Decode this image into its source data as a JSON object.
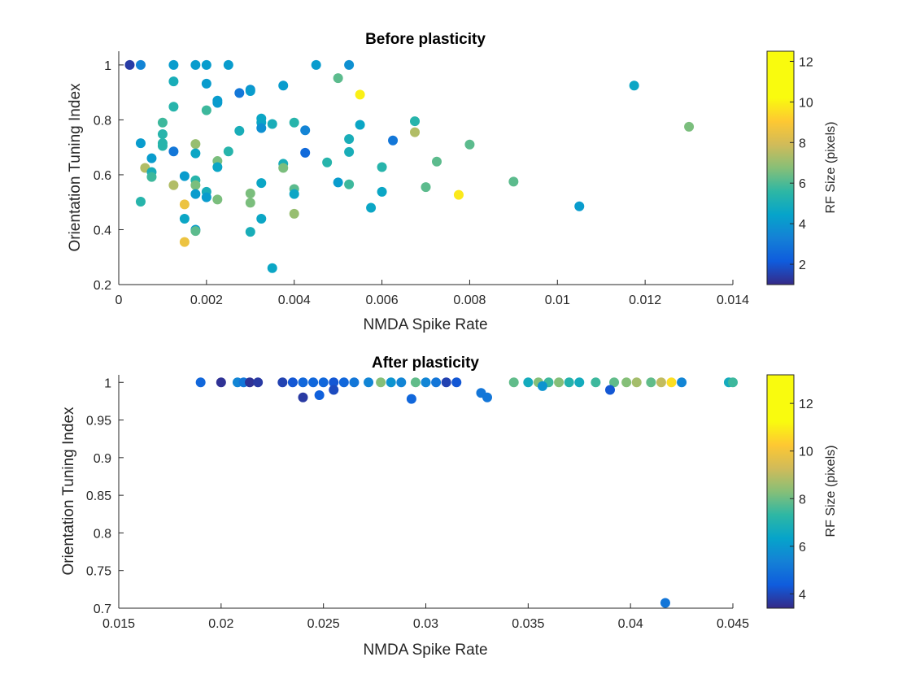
{
  "chart_data": [
    {
      "type": "scatter",
      "title": "Before plasticity",
      "xlabel": "NMDA Spike Rate",
      "ylabel": "Orientation Tuning Index",
      "xlim": [
        0,
        0.014
      ],
      "ylim": [
        0.2,
        1.05
      ],
      "xticks": [
        0,
        0.002,
        0.004,
        0.006,
        0.008,
        0.01,
        0.012,
        0.014
      ],
      "xtick_labels": [
        "0",
        "0.002",
        "0.004",
        "0.006",
        "0.008",
        "0.01",
        "0.012",
        "0.014"
      ],
      "yticks": [
        0.2,
        0.4,
        0.6,
        0.8,
        1
      ],
      "ytick_labels": [
        "0.2",
        "0.4",
        "0.6",
        "0.8",
        "1"
      ],
      "colorbar": {
        "label": "RF Size (pixels)",
        "range": [
          1,
          12.5
        ],
        "ticks": [
          2,
          4,
          6,
          8,
          10,
          12
        ],
        "tick_labels": [
          "2",
          "4",
          "6",
          "8",
          "10",
          "12"
        ],
        "colormap": "parula"
      },
      "points": [
        {
          "x": 0.00025,
          "y": 1.0,
          "c": 1.5
        },
        {
          "x": 0.0005,
          "y": 1.0,
          "c": 4.0
        },
        {
          "x": 0.00125,
          "y": 1.0,
          "c": 5.0
        },
        {
          "x": 0.00175,
          "y": 1.0,
          "c": 5.0
        },
        {
          "x": 0.002,
          "y": 1.0,
          "c": 5.0
        },
        {
          "x": 0.0025,
          "y": 1.0,
          "c": 5.0
        },
        {
          "x": 0.0045,
          "y": 1.0,
          "c": 5.0
        },
        {
          "x": 0.00525,
          "y": 1.0,
          "c": 4.5
        },
        {
          "x": 0.01175,
          "y": 0.925,
          "c": 5.5
        },
        {
          "x": 0.0055,
          "y": 0.892,
          "c": 12.2
        },
        {
          "x": 0.005,
          "y": 0.952,
          "c": 7.5
        },
        {
          "x": 0.00125,
          "y": 0.94,
          "c": 6.0
        },
        {
          "x": 0.002,
          "y": 0.932,
          "c": 5.0
        },
        {
          "x": 0.00375,
          "y": 0.925,
          "c": 5.0
        },
        {
          "x": 0.003,
          "y": 0.91,
          "c": 4.5
        },
        {
          "x": 0.003,
          "y": 0.905,
          "c": 5.0
        },
        {
          "x": 0.00275,
          "y": 0.898,
          "c": 3.5
        },
        {
          "x": 0.00225,
          "y": 0.87,
          "c": 5.0
        },
        {
          "x": 0.00225,
          "y": 0.862,
          "c": 5.0
        },
        {
          "x": 0.00125,
          "y": 0.848,
          "c": 6.5
        },
        {
          "x": 0.002,
          "y": 0.835,
          "c": 7.0
        },
        {
          "x": 0.00325,
          "y": 0.805,
          "c": 5.5
        },
        {
          "x": 0.00325,
          "y": 0.79,
          "c": 5.5
        },
        {
          "x": 0.0035,
          "y": 0.785,
          "c": 6.0
        },
        {
          "x": 0.004,
          "y": 0.79,
          "c": 6.5
        },
        {
          "x": 0.00675,
          "y": 0.795,
          "c": 6.5
        },
        {
          "x": 0.001,
          "y": 0.79,
          "c": 7.0
        },
        {
          "x": 0.0055,
          "y": 0.782,
          "c": 5.5
        },
        {
          "x": 0.00325,
          "y": 0.77,
          "c": 4.5
        },
        {
          "x": 0.00425,
          "y": 0.762,
          "c": 4.0
        },
        {
          "x": 0.00275,
          "y": 0.76,
          "c": 6.0
        },
        {
          "x": 0.00675,
          "y": 0.755,
          "c": 9.0
        },
        {
          "x": 0.013,
          "y": 0.775,
          "c": 8.0
        },
        {
          "x": 0.001,
          "y": 0.748,
          "c": 6.5
        },
        {
          "x": 0.00525,
          "y": 0.73,
          "c": 6.0
        },
        {
          "x": 0.00625,
          "y": 0.725,
          "c": 3.5
        },
        {
          "x": 0.001,
          "y": 0.715,
          "c": 6.5
        },
        {
          "x": 0.0005,
          "y": 0.715,
          "c": 5.0
        },
        {
          "x": 0.00175,
          "y": 0.712,
          "c": 8.5
        },
        {
          "x": 0.008,
          "y": 0.71,
          "c": 7.5
        },
        {
          "x": 0.001,
          "y": 0.705,
          "c": 6.5
        },
        {
          "x": 0.00125,
          "y": 0.685,
          "c": 3.5
        },
        {
          "x": 0.00175,
          "y": 0.678,
          "c": 5.5
        },
        {
          "x": 0.0025,
          "y": 0.685,
          "c": 6.5
        },
        {
          "x": 0.00425,
          "y": 0.68,
          "c": 3.0
        },
        {
          "x": 0.00525,
          "y": 0.683,
          "c": 6.0
        },
        {
          "x": 0.00075,
          "y": 0.66,
          "c": 5.0
        },
        {
          "x": 0.00225,
          "y": 0.65,
          "c": 8.0
        },
        {
          "x": 0.00475,
          "y": 0.645,
          "c": 6.5
        },
        {
          "x": 0.00375,
          "y": 0.64,
          "c": 6.0
        },
        {
          "x": 0.00725,
          "y": 0.648,
          "c": 7.5
        },
        {
          "x": 0.0006,
          "y": 0.625,
          "c": 9.0
        },
        {
          "x": 0.00375,
          "y": 0.625,
          "c": 8.0
        },
        {
          "x": 0.006,
          "y": 0.628,
          "c": 6.5
        },
        {
          "x": 0.00225,
          "y": 0.628,
          "c": 5.5
        },
        {
          "x": 0.00075,
          "y": 0.61,
          "c": 6.0
        },
        {
          "x": 0.00075,
          "y": 0.592,
          "c": 7.0
        },
        {
          "x": 0.0015,
          "y": 0.595,
          "c": 5.0
        },
        {
          "x": 0.00175,
          "y": 0.58,
          "c": 6.5
        },
        {
          "x": 0.009,
          "y": 0.575,
          "c": 7.5
        },
        {
          "x": 0.005,
          "y": 0.572,
          "c": 5.0
        },
        {
          "x": 0.00325,
          "y": 0.57,
          "c": 5.5
        },
        {
          "x": 0.00525,
          "y": 0.565,
          "c": 7.0
        },
        {
          "x": 0.00125,
          "y": 0.562,
          "c": 9.0
        },
        {
          "x": 0.00175,
          "y": 0.562,
          "c": 8.0
        },
        {
          "x": 0.007,
          "y": 0.555,
          "c": 7.5
        },
        {
          "x": 0.004,
          "y": 0.548,
          "c": 7.5
        },
        {
          "x": 0.002,
          "y": 0.538,
          "c": 6.0
        },
        {
          "x": 0.006,
          "y": 0.538,
          "c": 5.5
        },
        {
          "x": 0.003,
          "y": 0.532,
          "c": 8.0
        },
        {
          "x": 0.00175,
          "y": 0.53,
          "c": 5.0
        },
        {
          "x": 0.004,
          "y": 0.53,
          "c": 5.5
        },
        {
          "x": 0.00775,
          "y": 0.527,
          "c": 12.0
        },
        {
          "x": 0.002,
          "y": 0.518,
          "c": 5.0
        },
        {
          "x": 0.00225,
          "y": 0.51,
          "c": 8.0
        },
        {
          "x": 0.0005,
          "y": 0.502,
          "c": 6.5
        },
        {
          "x": 0.003,
          "y": 0.498,
          "c": 8.0
        },
        {
          "x": 0.0015,
          "y": 0.492,
          "c": 10.5
        },
        {
          "x": 0.0105,
          "y": 0.485,
          "c": 5.0
        },
        {
          "x": 0.00575,
          "y": 0.48,
          "c": 5.5
        },
        {
          "x": 0.004,
          "y": 0.458,
          "c": 8.5
        },
        {
          "x": 0.0015,
          "y": 0.44,
          "c": 5.5
        },
        {
          "x": 0.00325,
          "y": 0.44,
          "c": 5.5
        },
        {
          "x": 0.00175,
          "y": 0.4,
          "c": 5.0
        },
        {
          "x": 0.00175,
          "y": 0.395,
          "c": 7.5
        },
        {
          "x": 0.003,
          "y": 0.392,
          "c": 6.0
        },
        {
          "x": 0.0015,
          "y": 0.355,
          "c": 10.5
        },
        {
          "x": 0.0035,
          "y": 0.26,
          "c": 5.5
        }
      ]
    },
    {
      "type": "scatter",
      "title": "After plasticity",
      "xlabel": "NMDA Spike Rate",
      "ylabel": "Orientation Tuning Index",
      "xlim": [
        0.015,
        0.045
      ],
      "ylim": [
        0.7,
        1.01
      ],
      "xticks": [
        0.015,
        0.02,
        0.025,
        0.03,
        0.035,
        0.04,
        0.045
      ],
      "xtick_labels": [
        "0.015",
        "0.02",
        "0.025",
        "0.03",
        "0.035",
        "0.04",
        "0.045"
      ],
      "yticks": [
        0.7,
        0.75,
        0.8,
        0.85,
        0.9,
        0.95,
        1
      ],
      "ytick_labels": [
        "0.7",
        "0.75",
        "0.8",
        "0.85",
        "0.9",
        "0.95",
        "1"
      ],
      "colorbar": {
        "label": "RF Size (pixels)",
        "range": [
          3.4,
          13.2
        ],
        "ticks": [
          4,
          6,
          8,
          10,
          12
        ],
        "tick_labels": [
          "4",
          "6",
          "8",
          "10",
          "12"
        ],
        "colormap": "parula"
      },
      "points": [
        {
          "x": 0.019,
          "y": 1.0,
          "c": 5.0
        },
        {
          "x": 0.02,
          "y": 1.0,
          "c": 3.6
        },
        {
          "x": 0.0208,
          "y": 1.0,
          "c": 6.0
        },
        {
          "x": 0.0211,
          "y": 1.0,
          "c": 5.5
        },
        {
          "x": 0.0214,
          "y": 1.0,
          "c": 3.6
        },
        {
          "x": 0.0218,
          "y": 1.0,
          "c": 3.8
        },
        {
          "x": 0.023,
          "y": 1.0,
          "c": 4.0
        },
        {
          "x": 0.0235,
          "y": 1.0,
          "c": 4.5
        },
        {
          "x": 0.024,
          "y": 1.0,
          "c": 5.0
        },
        {
          "x": 0.0245,
          "y": 1.0,
          "c": 5.0
        },
        {
          "x": 0.025,
          "y": 1.0,
          "c": 5.0
        },
        {
          "x": 0.0255,
          "y": 1.0,
          "c": 4.5
        },
        {
          "x": 0.026,
          "y": 1.0,
          "c": 5.0
        },
        {
          "x": 0.0265,
          "y": 1.0,
          "c": 5.5
        },
        {
          "x": 0.0272,
          "y": 1.0,
          "c": 6.0
        },
        {
          "x": 0.0278,
          "y": 1.0,
          "c": 9.5
        },
        {
          "x": 0.0283,
          "y": 1.0,
          "c": 6.5
        },
        {
          "x": 0.0288,
          "y": 1.0,
          "c": 6.0
        },
        {
          "x": 0.0295,
          "y": 1.0,
          "c": 9.0
        },
        {
          "x": 0.03,
          "y": 1.0,
          "c": 6.0
        },
        {
          "x": 0.0305,
          "y": 1.0,
          "c": 5.5
        },
        {
          "x": 0.031,
          "y": 1.0,
          "c": 4.0
        },
        {
          "x": 0.0315,
          "y": 1.0,
          "c": 4.5
        },
        {
          "x": 0.0343,
          "y": 1.0,
          "c": 9.0
        },
        {
          "x": 0.035,
          "y": 1.0,
          "c": 7.5
        },
        {
          "x": 0.0355,
          "y": 1.0,
          "c": 9.5
        },
        {
          "x": 0.036,
          "y": 1.0,
          "c": 8.5
        },
        {
          "x": 0.0365,
          "y": 1.0,
          "c": 9.5
        },
        {
          "x": 0.037,
          "y": 1.0,
          "c": 8.0
        },
        {
          "x": 0.0375,
          "y": 1.0,
          "c": 7.5
        },
        {
          "x": 0.0383,
          "y": 1.0,
          "c": 8.5
        },
        {
          "x": 0.0392,
          "y": 1.0,
          "c": 9.0
        },
        {
          "x": 0.0398,
          "y": 1.0,
          "c": 9.5
        },
        {
          "x": 0.0403,
          "y": 1.0,
          "c": 10.0
        },
        {
          "x": 0.041,
          "y": 1.0,
          "c": 9.0
        },
        {
          "x": 0.0415,
          "y": 1.0,
          "c": 10.5
        },
        {
          "x": 0.042,
          "y": 1.0,
          "c": 12.5
        },
        {
          "x": 0.0425,
          "y": 1.0,
          "c": 6.0
        },
        {
          "x": 0.0448,
          "y": 1.0,
          "c": 7.5
        },
        {
          "x": 0.045,
          "y": 1.0,
          "c": 8.5
        },
        {
          "x": 0.0327,
          "y": 0.986,
          "c": 5.5
        },
        {
          "x": 0.033,
          "y": 0.98,
          "c": 5.5
        },
        {
          "x": 0.0357,
          "y": 0.995,
          "c": 6.5
        },
        {
          "x": 0.024,
          "y": 0.98,
          "c": 3.8
        },
        {
          "x": 0.0248,
          "y": 0.983,
          "c": 4.8
        },
        {
          "x": 0.0255,
          "y": 0.99,
          "c": 4.2
        },
        {
          "x": 0.0293,
          "y": 0.978,
          "c": 5.0
        },
        {
          "x": 0.039,
          "y": 0.99,
          "c": 4.5
        },
        {
          "x": 0.0417,
          "y": 0.707,
          "c": 5.5
        }
      ]
    }
  ]
}
